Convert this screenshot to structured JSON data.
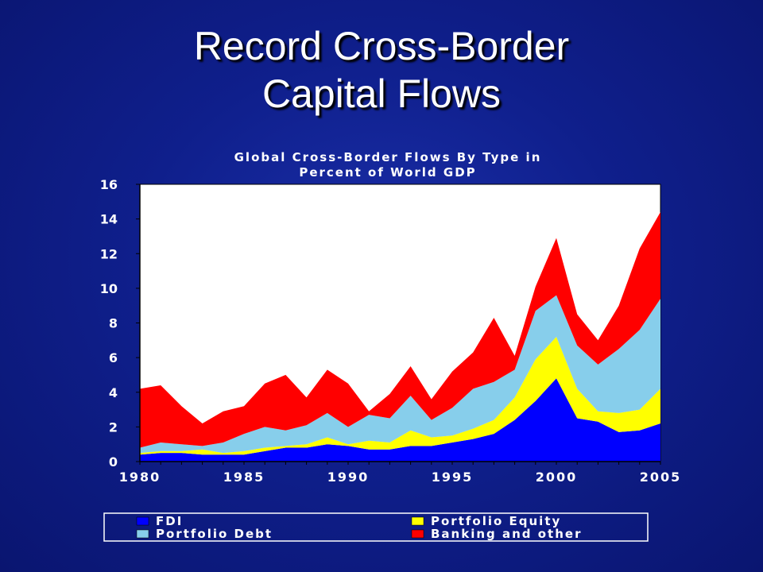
{
  "slide": {
    "title_line1": "Record Cross-Border",
    "title_line2": "Capital Flows"
  },
  "chart_data": {
    "type": "area",
    "stacked": true,
    "title": [
      "Global Cross-Border Flows By Type in",
      "Percent of World GDP"
    ],
    "xlabel": "",
    "ylabel": "",
    "x": [
      1980,
      1981,
      1982,
      1983,
      1984,
      1985,
      1986,
      1987,
      1988,
      1989,
      1990,
      1991,
      1992,
      1993,
      1994,
      1995,
      1996,
      1997,
      1998,
      1999,
      2000,
      2001,
      2002,
      2003,
      2004,
      2005
    ],
    "xlim": [
      1980,
      2005
    ],
    "ylim": [
      0,
      16
    ],
    "xticks": [
      1980,
      1985,
      1990,
      1995,
      2000,
      2005
    ],
    "yticks": [
      0,
      2,
      4,
      6,
      8,
      10,
      12,
      14,
      16
    ],
    "grid": false,
    "legend_position": "bottom",
    "series": [
      {
        "name": "FDI",
        "color": "#0000ff",
        "values": [
          0.4,
          0.5,
          0.5,
          0.4,
          0.4,
          0.4,
          0.6,
          0.8,
          0.8,
          1.0,
          0.9,
          0.7,
          0.7,
          0.9,
          0.9,
          1.1,
          1.3,
          1.6,
          2.4,
          3.5,
          4.8,
          2.5,
          2.3,
          1.7,
          1.8,
          2.2
        ]
      },
      {
        "name": "Portfolio Equity",
        "color": "#ffff00",
        "values": [
          0.1,
          0.1,
          0.1,
          0.3,
          0.1,
          0.2,
          0.2,
          0.1,
          0.2,
          0.4,
          0.1,
          0.5,
          0.4,
          0.9,
          0.5,
          0.4,
          0.6,
          0.8,
          1.3,
          2.4,
          2.4,
          1.7,
          0.6,
          1.1,
          1.2,
          2.0
        ]
      },
      {
        "name": "Portfolio Debt",
        "color": "#87ceeb",
        "values": [
          0.3,
          0.5,
          0.4,
          0.2,
          0.6,
          1.0,
          1.2,
          0.9,
          1.1,
          1.4,
          1.0,
          1.5,
          1.4,
          2.0,
          1.0,
          1.6,
          2.3,
          2.2,
          1.6,
          2.8,
          2.4,
          2.5,
          2.7,
          3.7,
          4.6,
          5.2
        ]
      },
      {
        "name": "Banking and other",
        "color": "#ff0000",
        "values": [
          3.4,
          3.3,
          2.2,
          1.3,
          1.8,
          1.6,
          2.5,
          3.2,
          1.6,
          2.5,
          2.5,
          0.2,
          1.4,
          1.7,
          1.2,
          2.1,
          2.1,
          3.7,
          0.8,
          1.4,
          3.3,
          1.8,
          1.4,
          2.5,
          4.7,
          5.0
        ]
      }
    ],
    "legend": [
      {
        "label": "FDI",
        "color": "#0000ff"
      },
      {
        "label": "Portfolio Equity",
        "color": "#ffff00"
      },
      {
        "label": "Portfolio Debt",
        "color": "#87ceeb"
      },
      {
        "label": "Banking and other",
        "color": "#ff0000"
      }
    ]
  }
}
